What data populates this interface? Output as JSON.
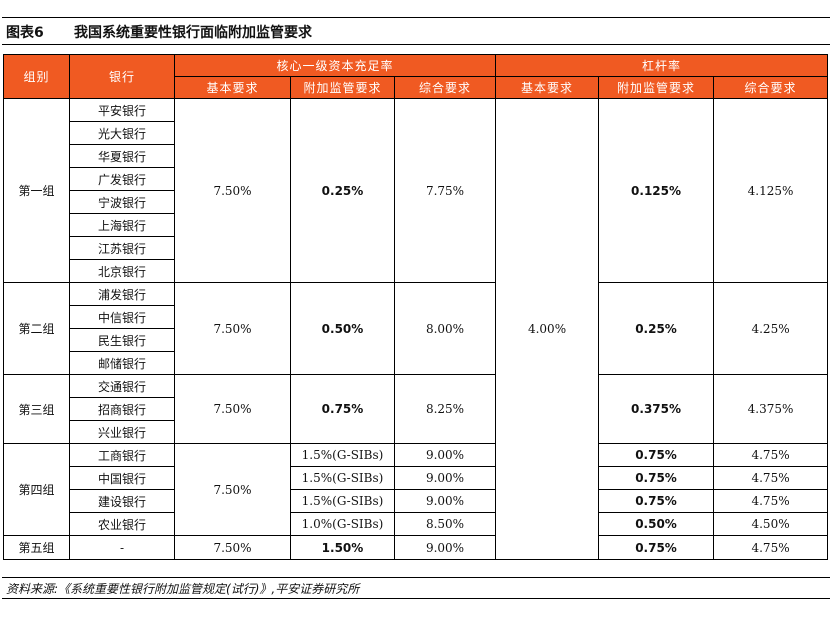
{
  "title": {
    "figure_no": "图表6",
    "text": "我国系统重要性银行面临附加监管要求"
  },
  "headers": {
    "group": "组别",
    "bank": "银行",
    "cet1": "核心一级资本充足率",
    "leverage": "杠杆率",
    "basic": "基本要求",
    "additional": "附加监管要求",
    "total": "综合要求"
  },
  "groups": [
    {
      "name": "第一组",
      "banks": [
        "平安银行",
        "光大银行",
        "华夏银行",
        "广发银行",
        "宁波银行",
        "上海银行",
        "江苏银行",
        "北京银行"
      ],
      "cet1_basic": "7.50%",
      "cet1_add": [
        "0.25%"
      ],
      "cet1_total": [
        "7.75%"
      ],
      "lev_add": [
        "0.125%"
      ],
      "lev_total": [
        "4.125%"
      ]
    },
    {
      "name": "第二组",
      "banks": [
        "浦发银行",
        "中信银行",
        "民生银行",
        "邮储银行"
      ],
      "cet1_basic": "7.50%",
      "cet1_add": [
        "0.50%"
      ],
      "cet1_total": [
        "8.00%"
      ],
      "lev_add": [
        "0.25%"
      ],
      "lev_total": [
        "4.25%"
      ]
    },
    {
      "name": "第三组",
      "banks": [
        "交通银行",
        "招商银行",
        "兴业银行"
      ],
      "cet1_basic": "7.50%",
      "cet1_add": [
        "0.75%"
      ],
      "cet1_total": [
        "8.25%"
      ],
      "lev_add": [
        "0.375%"
      ],
      "lev_total": [
        "4.375%"
      ]
    },
    {
      "name": "第四组",
      "banks": [
        "工商银行",
        "中国银行",
        "建设银行",
        "农业银行"
      ],
      "cet1_basic": "7.50%",
      "cet1_add": [
        "1.5%(G-SIBs)",
        "1.5%(G-SIBs)",
        "1.5%(G-SIBs)",
        "1.0%(G-SIBs)"
      ],
      "cet1_total": [
        "9.00%",
        "9.00%",
        "9.00%",
        "8.50%"
      ],
      "lev_add": [
        "0.75%",
        "0.75%",
        "0.75%",
        "0.50%"
      ],
      "lev_total": [
        "4.75%",
        "4.75%",
        "4.75%",
        "4.50%"
      ]
    },
    {
      "name": "第五组",
      "banks": [
        "-"
      ],
      "cet1_basic": "7.50%",
      "cet1_add": [
        "1.50%"
      ],
      "cet1_total": [
        "9.00%"
      ],
      "lev_add": [
        "0.75%"
      ],
      "lev_total": [
        "4.75%"
      ]
    }
  ],
  "leverage_basic": "4.00%",
  "source": "资料来源:《系统重要性银行附加监管规定(试行)》,平安证券研究所",
  "colors": {
    "header_bg": "#f05a22",
    "header_text": "#ffffff"
  }
}
